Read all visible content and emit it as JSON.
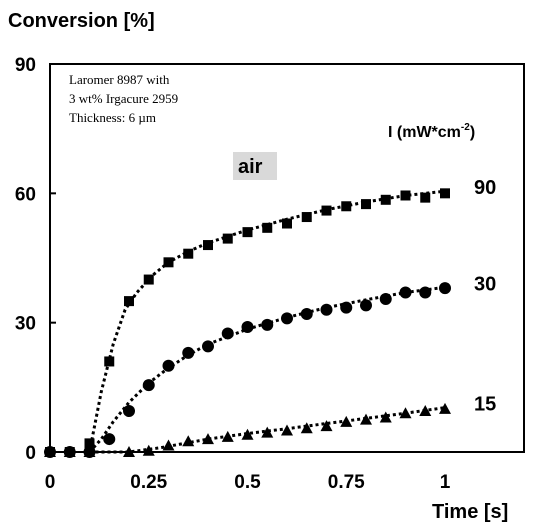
{
  "chart_data": {
    "type": "line",
    "ylabel": "Conversion [%]",
    "xlabel": "Time [s]",
    "xlim": [
      0,
      1.2
    ],
    "ylim": [
      0,
      90
    ],
    "x_ticks": [
      "0",
      "0.25",
      "0.5",
      "0.75",
      "1"
    ],
    "x_tick_values": [
      0,
      0.25,
      0.5,
      0.75,
      1
    ],
    "y_ticks": [
      "0",
      "30",
      "60",
      "90"
    ],
    "y_tick_values": [
      0,
      30,
      60,
      90
    ],
    "annotation": [
      "Laromer 8987 with",
      "3 wt% Irgacure 2959",
      "Thickness: 6 µm"
    ],
    "condition_label": "air",
    "intensity_label": "I (mW*cm",
    "intensity_sup": "-2",
    "intensity_close": ")",
    "grid": false,
    "series": [
      {
        "name": "90",
        "marker": "square",
        "points": [
          [
            0,
            0
          ],
          [
            0.05,
            0
          ],
          [
            0.1,
            2
          ],
          [
            0.15,
            21
          ],
          [
            0.2,
            35
          ],
          [
            0.25,
            40
          ],
          [
            0.3,
            44
          ],
          [
            0.35,
            46
          ],
          [
            0.4,
            48
          ],
          [
            0.45,
            49.5
          ],
          [
            0.5,
            51
          ],
          [
            0.55,
            52
          ],
          [
            0.6,
            53
          ],
          [
            0.65,
            54.5
          ],
          [
            0.7,
            56
          ],
          [
            0.75,
            57
          ],
          [
            0.8,
            57.5
          ],
          [
            0.85,
            58.5
          ],
          [
            0.9,
            59.5
          ],
          [
            0.95,
            59
          ],
          [
            1.0,
            60
          ]
        ],
        "fit": [
          [
            0.1,
            0
          ],
          [
            0.13,
            14
          ],
          [
            0.16,
            25
          ],
          [
            0.19,
            33
          ],
          [
            0.22,
            37
          ],
          [
            0.26,
            41
          ],
          [
            0.3,
            44
          ],
          [
            0.35,
            46.5
          ],
          [
            0.4,
            48.5
          ],
          [
            0.5,
            51.5
          ],
          [
            0.6,
            54
          ],
          [
            0.7,
            56.2
          ],
          [
            0.8,
            58
          ],
          [
            0.9,
            59.5
          ],
          [
            1.0,
            60.5
          ]
        ]
      },
      {
        "name": "30",
        "marker": "circle",
        "points": [
          [
            0,
            0
          ],
          [
            0.05,
            0
          ],
          [
            0.1,
            0
          ],
          [
            0.15,
            3
          ],
          [
            0.2,
            9.5
          ],
          [
            0.25,
            15.5
          ],
          [
            0.3,
            20
          ],
          [
            0.35,
            23
          ],
          [
            0.4,
            24.5
          ],
          [
            0.45,
            27.5
          ],
          [
            0.5,
            29
          ],
          [
            0.55,
            29.5
          ],
          [
            0.6,
            31
          ],
          [
            0.65,
            32
          ],
          [
            0.7,
            33
          ],
          [
            0.75,
            33.5
          ],
          [
            0.8,
            34
          ],
          [
            0.85,
            35.5
          ],
          [
            0.9,
            37
          ],
          [
            0.95,
            37
          ],
          [
            1.0,
            38
          ]
        ],
        "fit": [
          [
            0.1,
            0
          ],
          [
            0.13,
            3
          ],
          [
            0.16,
            7
          ],
          [
            0.2,
            11.5
          ],
          [
            0.25,
            16
          ],
          [
            0.3,
            19.5
          ],
          [
            0.35,
            22.5
          ],
          [
            0.4,
            25
          ],
          [
            0.5,
            28.5
          ],
          [
            0.6,
            31.2
          ],
          [
            0.7,
            33.5
          ],
          [
            0.8,
            35.3
          ],
          [
            0.9,
            37
          ],
          [
            1.0,
            38.2
          ]
        ]
      },
      {
        "name": "15",
        "marker": "triangle",
        "points": [
          [
            0,
            0
          ],
          [
            0.05,
            0
          ],
          [
            0.1,
            0
          ],
          [
            0.2,
            0
          ],
          [
            0.25,
            0.3
          ],
          [
            0.3,
            1.5
          ],
          [
            0.35,
            2.5
          ],
          [
            0.4,
            3
          ],
          [
            0.45,
            3.5
          ],
          [
            0.5,
            4
          ],
          [
            0.55,
            4.5
          ],
          [
            0.6,
            5
          ],
          [
            0.65,
            5.5
          ],
          [
            0.7,
            6
          ],
          [
            0.75,
            7
          ],
          [
            0.8,
            7.5
          ],
          [
            0.85,
            8
          ],
          [
            0.9,
            9
          ],
          [
            0.95,
            9.5
          ],
          [
            1.0,
            10
          ]
        ],
        "fit": [
          [
            0.1,
            0
          ],
          [
            0.2,
            0
          ],
          [
            0.28,
            1
          ],
          [
            0.4,
            3
          ],
          [
            0.5,
            4.3
          ],
          [
            0.6,
            5.4
          ],
          [
            0.7,
            6.6
          ],
          [
            0.8,
            7.8
          ],
          [
            0.9,
            9
          ],
          [
            1.0,
            10.3
          ]
        ]
      }
    ]
  }
}
